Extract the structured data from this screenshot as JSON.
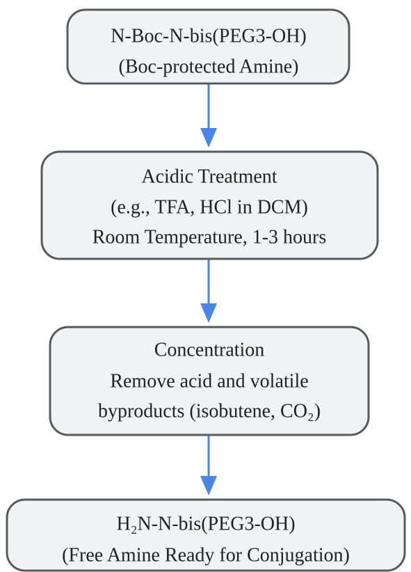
{
  "nodes": [
    {
      "lines": [
        "N-Boc-N-bis(PEG3-OH)",
        "(Boc-protected Amine)"
      ]
    },
    {
      "lines": [
        "Acidic Treatment",
        "(e.g., TFA, HCl in DCM)",
        "Room Temperature, 1-3 hours"
      ]
    },
    {
      "lines": [
        "Concentration",
        "Remove acid and volatile",
        "byproducts (isobutene, CO₂)"
      ]
    },
    {
      "lines": [
        "H₂N-N-bis(PEG3-OH)",
        "(Free Amine Ready for Conjugation)"
      ]
    }
  ]
}
